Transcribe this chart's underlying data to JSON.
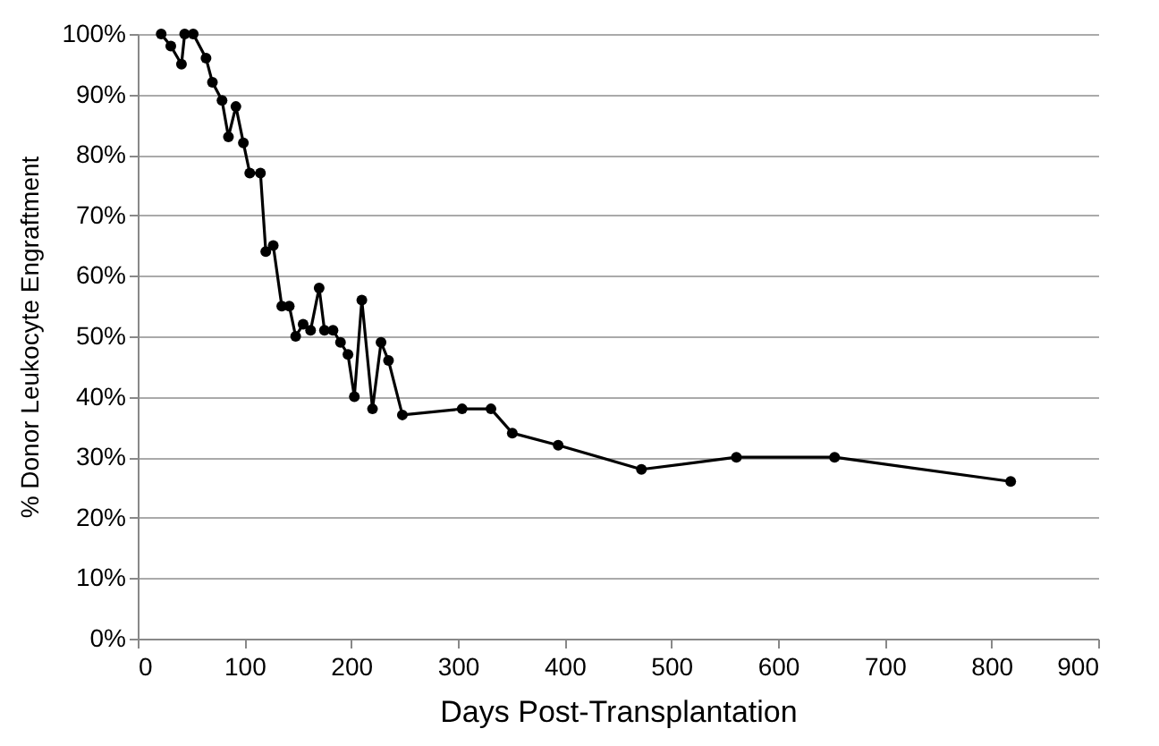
{
  "chart_data": {
    "type": "line",
    "xlabel": "Days Post-Transplantation",
    "ylabel": "% Donor Leukocyte Engraftment",
    "x": [
      22,
      31,
      41,
      44,
      52,
      64,
      70,
      79,
      85,
      92,
      99,
      105,
      115,
      120,
      127,
      135,
      142,
      148,
      155,
      162,
      170,
      175,
      183,
      190,
      197,
      203,
      210,
      220,
      228,
      235,
      248,
      304,
      331,
      351,
      394,
      472,
      561,
      653,
      818
    ],
    "series": [
      {
        "color": "#000000",
        "values": [
          100,
          98,
          95,
          100,
          100,
          96,
          92,
          89,
          83,
          88,
          82,
          77,
          77,
          64,
          65,
          55,
          55,
          50,
          52,
          51,
          58,
          51,
          51,
          49,
          47,
          40,
          56,
          38,
          49,
          46,
          37,
          38,
          38,
          34,
          32,
          28,
          30,
          30,
          26
        ]
      }
    ],
    "xlim": [
      0,
      900
    ],
    "xticks": [
      0,
      100,
      200,
      300,
      400,
      500,
      600,
      700,
      800,
      900
    ],
    "ylim": [
      0,
      100
    ],
    "yticks": [
      {
        "value": 0,
        "label": "0%"
      },
      {
        "value": 10,
        "label": "10%"
      },
      {
        "value": 20,
        "label": "20%"
      },
      {
        "value": 30,
        "label": "30%"
      },
      {
        "value": 40,
        "label": "40%"
      },
      {
        "value": 50,
        "label": "50%"
      },
      {
        "value": 60,
        "label": "60%"
      },
      {
        "value": 70,
        "label": "70%"
      },
      {
        "value": 80,
        "label": "80%"
      },
      {
        "value": 90,
        "label": "90%"
      },
      {
        "value": 100,
        "label": "100%"
      }
    ],
    "grid": "y",
    "marker": "circle",
    "line_style": "solid"
  }
}
